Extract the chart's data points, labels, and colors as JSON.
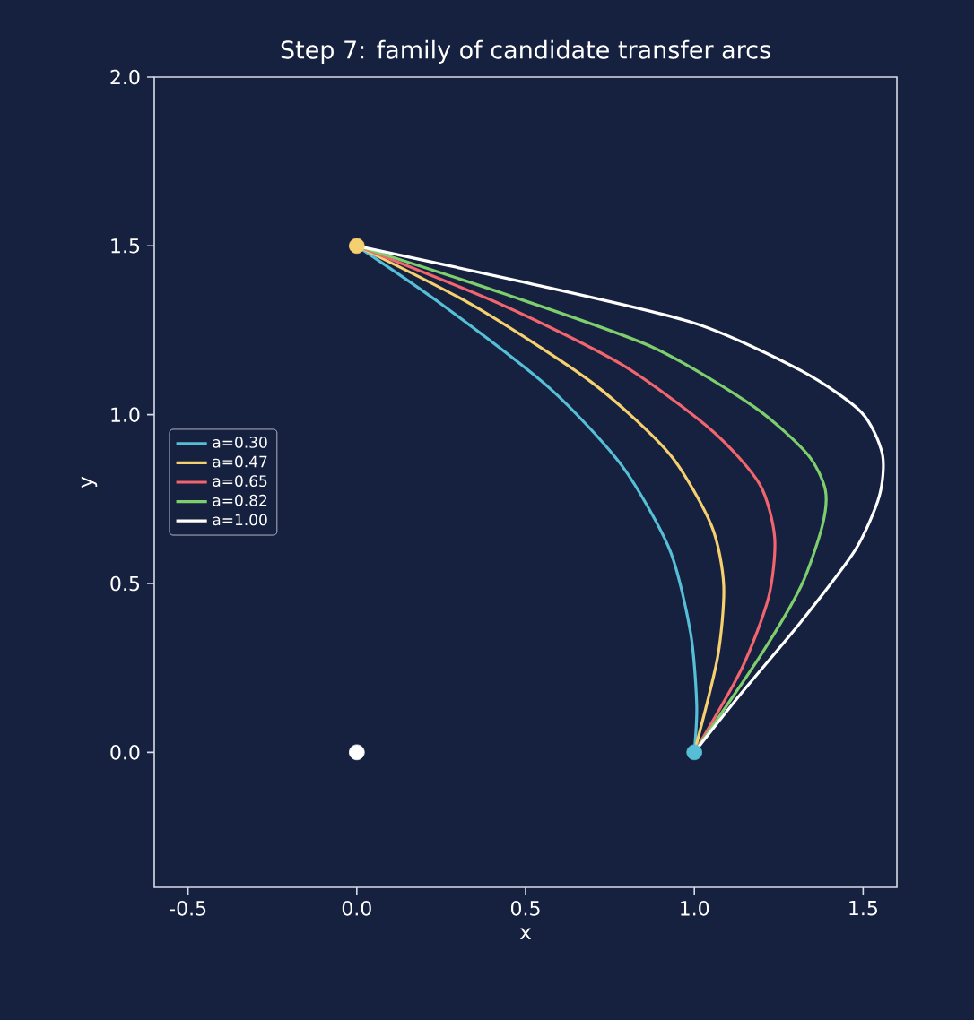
{
  "chart_data": {
    "type": "line",
    "title": "Step 7: family of candidate transfer arcs",
    "xlabel": "x",
    "ylabel": "y",
    "xlim": [
      -0.6,
      1.6
    ],
    "ylim": [
      -0.4,
      2.0
    ],
    "xticks": [
      -0.5,
      {
        "value": 0,
        "label": "0.0"
      },
      0.5,
      {
        "value": 1,
        "label": "1.0"
      },
      1.5
    ],
    "yticks": [
      {
        "value": 0,
        "label": "0.0"
      },
      0.5,
      {
        "value": 1,
        "label": "1.0"
      },
      1.5,
      {
        "value": 2,
        "label": "2.0"
      }
    ],
    "grid": false,
    "legend": "left",
    "line_style": "solid",
    "series": [
      {
        "name": "a=0.30",
        "color": "#56bfd6",
        "x": [
          0,
          0.254,
          0.573,
          0.786,
          0.927,
          0.989,
          1.007,
          1
        ],
        "values": [
          1.5,
          1.325,
          1.077,
          0.848,
          0.6,
          0.353,
          0.141,
          0
        ]
      },
      {
        "name": "a=0.47",
        "color": "#f5d06f",
        "x": [
          0,
          0.342,
          0.697,
          0.927,
          1.051,
          1.087,
          1.069,
          1
        ],
        "values": [
          1.5,
          1.325,
          1.095,
          0.883,
          0.671,
          0.494,
          0.282,
          0
        ]
      },
      {
        "name": "a=0.65",
        "color": "#f0656e",
        "x": [
          0,
          0.431,
          0.786,
          1.051,
          1.193,
          1.238,
          1.22,
          1.14,
          1
        ],
        "values": [
          1.5,
          1.325,
          1.148,
          0.954,
          0.795,
          0.636,
          0.459,
          0.247,
          0
        ]
      },
      {
        "name": "a=0.82",
        "color": "#7fce6e",
        "x": [
          0,
          0.431,
          0.874,
          1.176,
          1.335,
          1.388,
          1.379,
          1.317,
          1.193,
          1
        ],
        "values": [
          1.5,
          1.36,
          1.201,
          1.024,
          0.883,
          0.777,
          0.671,
          0.494,
          0.282,
          0
        ]
      },
      {
        "name": "a=1.00",
        "color": "#ffffff",
        "x": [
          0,
          0.484,
          0.998,
          1.317,
          1.495,
          1.557,
          1.548,
          1.477,
          1.317,
          1.14,
          1
        ],
        "values": [
          1.5,
          1.395,
          1.272,
          1.13,
          1.007,
          0.883,
          0.759,
          0.6,
          0.388,
          0.176,
          0
        ]
      },
      {
        "type": "scatter",
        "marker": "circle",
        "x": [
          0,
          1,
          0
        ],
        "values": [
          1.5,
          0,
          0
        ],
        "colors": [
          "#f5d06f",
          "#56bfd6",
          "#ffffff"
        ]
      }
    ]
  }
}
